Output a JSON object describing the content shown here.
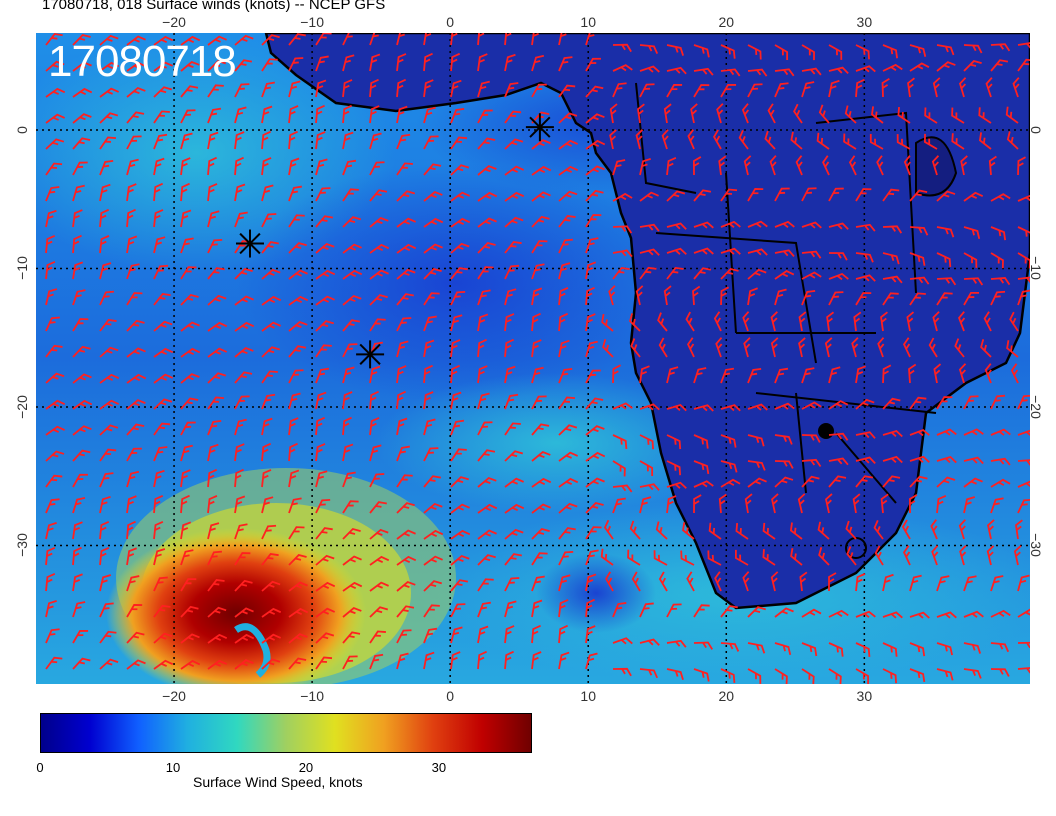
{
  "title": "17080718, 018 Surface winds (knots) -- NCEP GFS",
  "date_overlay": "17080718",
  "map": {
    "lon_range": [
      -30,
      42
    ],
    "lat_range": [
      -40,
      7
    ],
    "grid": "dotted",
    "top_ticks": [
      "−20",
      "−10",
      "0",
      "10",
      "20",
      "30"
    ],
    "bottom_ticks": [
      "−20",
      "−10",
      "0",
      "10",
      "20",
      "30"
    ],
    "left_ticks": [
      "0",
      "−10",
      "−20",
      "−30"
    ],
    "right_ticks": [
      "0",
      "−10",
      "−20",
      "−30"
    ],
    "barb_color": "#ff2020",
    "markers": [
      {
        "lon": 6.5,
        "lat": 0.2,
        "symbol": "asterisk"
      },
      {
        "lon": -14.5,
        "lat": -8.2,
        "symbol": "asterisk"
      },
      {
        "lon": -5.8,
        "lat": -16.2,
        "symbol": "asterisk"
      }
    ]
  },
  "colorbar": {
    "label": "Surface Wind Speed, knots",
    "ticks": [
      "0",
      "10",
      "20",
      "30"
    ],
    "range": [
      0,
      37
    ],
    "colors": [
      "#00008b",
      "#0000d0",
      "#1060ff",
      "#20b0e0",
      "#30d8c0",
      "#a0d060",
      "#e0e020",
      "#f0a020",
      "#e04010",
      "#c00000",
      "#700000"
    ]
  }
}
